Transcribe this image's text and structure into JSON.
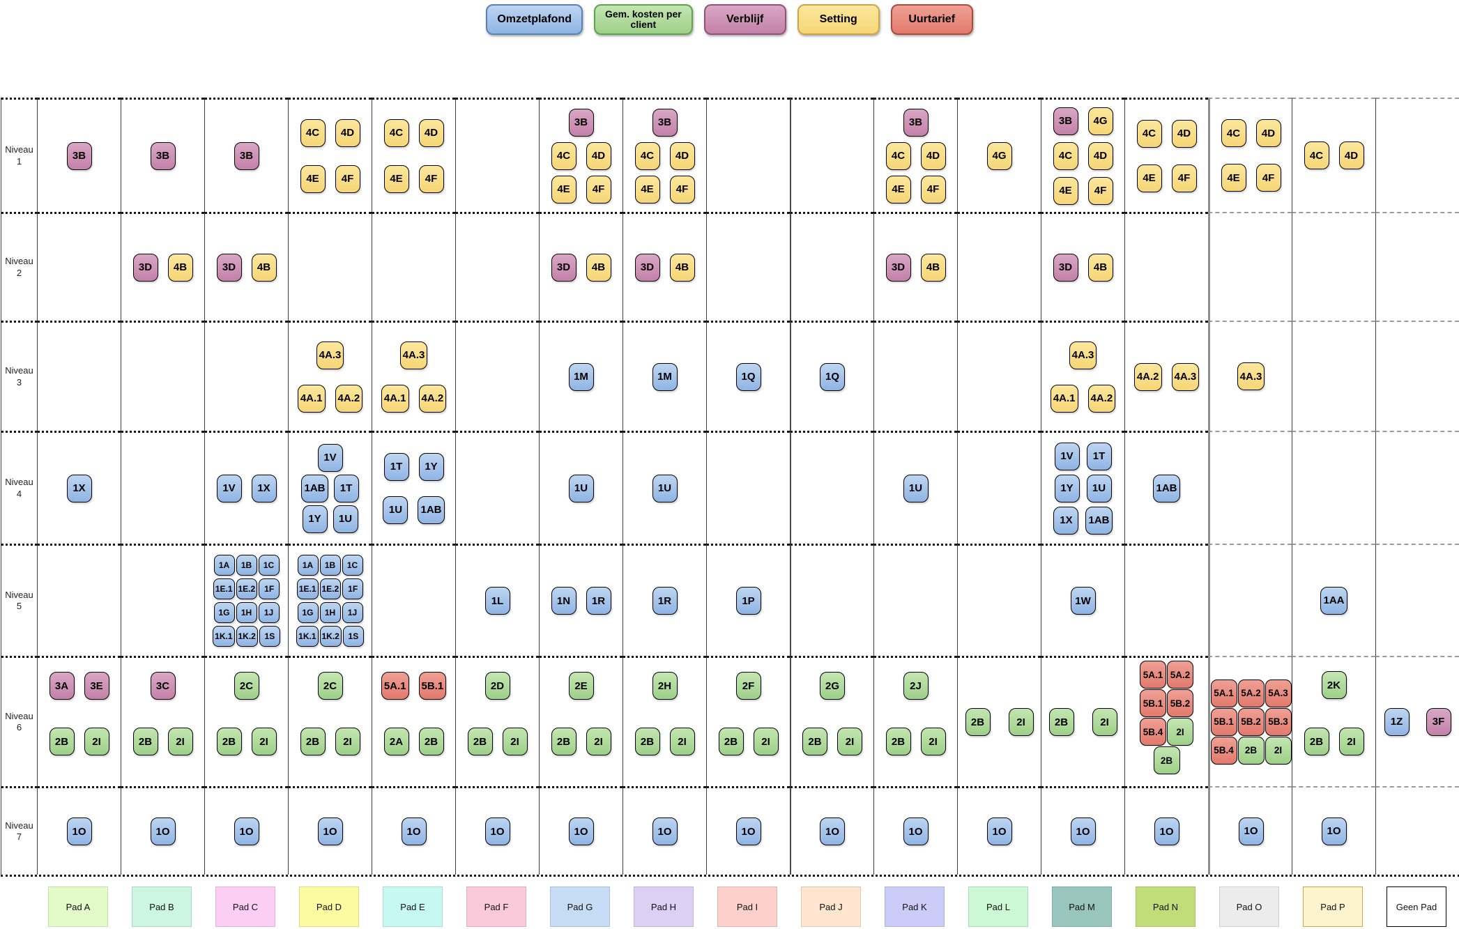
{
  "legend": {
    "items": [
      {
        "label": "Omzetplafond",
        "color": "blue"
      },
      {
        "label": "Gem. kosten per\nclient",
        "color": "green"
      },
      {
        "label": "Verblijf",
        "color": "pink"
      },
      {
        "label": "Setting",
        "color": "yellow"
      },
      {
        "label": "Uurtarief",
        "color": "red"
      }
    ]
  },
  "palette": {
    "blue": {
      "light": "#bdd5f1",
      "main": "#8fb4e4",
      "border": "#5b82b4"
    },
    "green": {
      "light": "#c4e6b2",
      "main": "#9ed089",
      "border": "#61a050"
    },
    "pink": {
      "light": "#d9a7c5",
      "main": "#c481a9",
      "border": "#8f537a"
    },
    "yellow": {
      "light": "#fbe79c",
      "main": "#f6d677",
      "border": "#c9a647"
    },
    "red": {
      "light": "#efa095",
      "main": "#e27a6c",
      "border": "#ad4a40"
    }
  },
  "grid": {
    "row_labels": [
      "Niveau 1",
      "Niveau 2",
      "Niveau 3",
      "Niveau 4",
      "Niveau 5",
      "Niveau 6",
      "Niveau 7"
    ],
    "columns": [
      {
        "key": "A",
        "label": "Pad A",
        "bg": "#e3fbc9"
      },
      {
        "key": "B",
        "label": "Pad B",
        "bg": "#cbf7e0"
      },
      {
        "key": "C",
        "label": "Pad C",
        "bg": "#fbcff5"
      },
      {
        "key": "D",
        "label": "Pad D",
        "bg": "#fdfb9f"
      },
      {
        "key": "E",
        "label": "Pad E",
        "bg": "#c7f9f3"
      },
      {
        "key": "F",
        "label": "Pad F",
        "bg": "#fbcada"
      },
      {
        "key": "G",
        "label": "Pad G",
        "bg": "#c6dcf4"
      },
      {
        "key": "H",
        "label": "Pad H",
        "bg": "#decff7"
      },
      {
        "key": "I",
        "label": "Pad I",
        "bg": "#fdd0cc"
      },
      {
        "key": "J",
        "label": "Pad J",
        "bg": "#fde5cf"
      },
      {
        "key": "K",
        "label": "Pad K",
        "bg": "#ccccf9"
      },
      {
        "key": "L",
        "label": "Pad L",
        "bg": "#ccf9d5"
      },
      {
        "key": "M",
        "label": "Pad M",
        "bg": "#98c5bc"
      },
      {
        "key": "N",
        "label": "Pad N",
        "bg": "#c1dd79"
      },
      {
        "key": "O",
        "label": "Pad O",
        "bg": "#ececec"
      },
      {
        "key": "P",
        "label": "Pad P",
        "bg": "#fdf3cc",
        "border": "#cfa94d"
      },
      {
        "key": "geen",
        "label": "Geen Pad",
        "bg": "#ffffff",
        "border": "#000000"
      }
    ],
    "cells": [
      {
        "niveau": 1,
        "pad": "A",
        "mode": "center",
        "rows": [
          [
            "3B:pink"
          ]
        ]
      },
      {
        "niveau": 1,
        "pad": "B",
        "mode": "center",
        "rows": [
          [
            "3B:pink"
          ]
        ]
      },
      {
        "niveau": 1,
        "pad": "C",
        "mode": "center",
        "rows": [
          [
            "3B:pink"
          ]
        ]
      },
      {
        "niveau": 1,
        "pad": "D",
        "mode": "center",
        "vgap": 26,
        "rows": [
          [
            "4C:yellow",
            "4D:yellow"
          ],
          [
            "4E:yellow",
            "4F:yellow"
          ]
        ]
      },
      {
        "niveau": 1,
        "pad": "E",
        "mode": "center",
        "vgap": 26,
        "rows": [
          [
            "4C:yellow",
            "4D:yellow"
          ],
          [
            "4E:yellow",
            "4F:yellow"
          ]
        ]
      },
      {
        "niveau": 1,
        "pad": "G",
        "mode": "center",
        "vgap": 8,
        "rows": [
          [
            "3B:pink"
          ],
          [
            "4C:yellow",
            "4D:yellow"
          ],
          [
            "4E:yellow",
            "4F:yellow"
          ]
        ]
      },
      {
        "niveau": 1,
        "pad": "H",
        "mode": "center",
        "vgap": 8,
        "rows": [
          [
            "3B:pink"
          ],
          [
            "4C:yellow",
            "4D:yellow"
          ],
          [
            "4E:yellow",
            "4F:yellow"
          ]
        ]
      },
      {
        "niveau": 1,
        "pad": "K",
        "mode": "center",
        "vgap": 8,
        "rows": [
          [
            "3B:pink"
          ],
          [
            "4C:yellow",
            "4D:yellow"
          ],
          [
            "4E:yellow",
            "4F:yellow"
          ]
        ]
      },
      {
        "niveau": 1,
        "pad": "L",
        "mode": "center",
        "rows": [
          [
            "4G:yellow"
          ]
        ]
      },
      {
        "niveau": 1,
        "pad": "M",
        "mode": "center",
        "vgap": 10,
        "rows": [
          [
            "3B:pink",
            "4G:yellow"
          ],
          [
            "4C:yellow",
            "4D:yellow"
          ],
          [
            "4E:yellow",
            "4F:yellow"
          ]
        ]
      },
      {
        "niveau": 1,
        "pad": "N",
        "mode": "center",
        "vgap": 24,
        "rows": [
          [
            "4C:yellow",
            "4D:yellow"
          ],
          [
            "4E:yellow",
            "4F:yellow"
          ]
        ]
      },
      {
        "niveau": 1,
        "pad": "O",
        "mode": "center",
        "vgap": 24,
        "rows": [
          [
            "4C:yellow",
            "4D:yellow"
          ],
          [
            "4E:yellow",
            "4F:yellow"
          ]
        ]
      },
      {
        "niveau": 1,
        "pad": "P",
        "mode": "center",
        "rows": [
          [
            "4C:yellow",
            "4D:yellow"
          ]
        ]
      },
      {
        "niveau": 2,
        "pad": "B",
        "mode": "center",
        "rows": [
          [
            "3D:pink",
            "4B:yellow"
          ]
        ]
      },
      {
        "niveau": 2,
        "pad": "C",
        "mode": "center",
        "rows": [
          [
            "3D:pink",
            "4B:yellow"
          ]
        ]
      },
      {
        "niveau": 2,
        "pad": "G",
        "mode": "center",
        "rows": [
          [
            "3D:pink",
            "4B:yellow"
          ]
        ]
      },
      {
        "niveau": 2,
        "pad": "H",
        "mode": "center",
        "rows": [
          [
            "3D:pink",
            "4B:yellow"
          ]
        ]
      },
      {
        "niveau": 2,
        "pad": "K",
        "mode": "center",
        "rows": [
          [
            "3D:pink",
            "4B:yellow"
          ]
        ]
      },
      {
        "niveau": 2,
        "pad": "M",
        "mode": "center",
        "rows": [
          [
            "3D:pink",
            "4B:yellow"
          ]
        ]
      },
      {
        "niveau": 3,
        "pad": "D",
        "mode": "center",
        "vgap": 22,
        "rows": [
          [
            "4A.3:yellow"
          ],
          [
            "4A.1:yellow",
            "4A.2:yellow"
          ]
        ]
      },
      {
        "niveau": 3,
        "pad": "E",
        "mode": "center",
        "vgap": 22,
        "rows": [
          [
            "4A.3:yellow"
          ],
          [
            "4A.1:yellow",
            "4A.2:yellow"
          ]
        ]
      },
      {
        "niveau": 3,
        "pad": "G",
        "mode": "center",
        "rows": [
          [
            "1M:blue"
          ]
        ]
      },
      {
        "niveau": 3,
        "pad": "H",
        "mode": "center",
        "rows": [
          [
            "1M:blue"
          ]
        ]
      },
      {
        "niveau": 3,
        "pad": "I",
        "mode": "center",
        "rows": [
          [
            "1Q:blue"
          ]
        ]
      },
      {
        "niveau": 3,
        "pad": "J",
        "mode": "center",
        "rows": [
          [
            "1Q:blue"
          ]
        ]
      },
      {
        "niveau": 3,
        "pad": "M",
        "mode": "center",
        "vgap": 22,
        "rows": [
          [
            "4A.3:yellow"
          ],
          [
            "4A.1:yellow",
            "4A.2:yellow"
          ]
        ]
      },
      {
        "niveau": 3,
        "pad": "N",
        "mode": "center",
        "rows": [
          [
            "4A.2:yellow",
            "4A.3:yellow"
          ]
        ]
      },
      {
        "niveau": 3,
        "pad": "O",
        "mode": "center",
        "rows": [
          [
            "4A.3:yellow"
          ]
        ]
      },
      {
        "niveau": 4,
        "pad": "A",
        "mode": "center",
        "rows": [
          [
            "1X:blue"
          ]
        ]
      },
      {
        "niveau": 4,
        "pad": "C",
        "mode": "center",
        "rows": [
          [
            "1V:blue",
            "1X:blue"
          ]
        ]
      },
      {
        "niveau": 4,
        "pad": "D",
        "mode": "center",
        "vgap": 4,
        "hgap": 8,
        "rows": [
          [
            "1V:blue"
          ],
          [
            "1AB:blue",
            "1T:blue"
          ],
          [
            "1Y:blue",
            "1U:blue"
          ]
        ]
      },
      {
        "niveau": 4,
        "pad": "E",
        "mode": "center",
        "vgap": 22,
        "rows": [
          [
            "1T:blue",
            "1Y:blue"
          ],
          [
            "1U:blue",
            "1AB:blue"
          ]
        ]
      },
      {
        "niveau": 4,
        "pad": "G",
        "mode": "center",
        "rows": [
          [
            "1U:blue"
          ]
        ]
      },
      {
        "niveau": 4,
        "pad": "H",
        "mode": "center",
        "rows": [
          [
            "1U:blue"
          ]
        ]
      },
      {
        "niveau": 4,
        "pad": "K",
        "mode": "center",
        "rows": [
          [
            "1U:blue"
          ]
        ]
      },
      {
        "niveau": 4,
        "pad": "M",
        "mode": "center",
        "vgap": 6,
        "hgap": 10,
        "rows": [
          [
            "1V:blue",
            "1T:blue"
          ],
          [
            "1Y:blue",
            "1U:blue"
          ],
          [
            "1X:blue",
            "1AB:blue"
          ]
        ]
      },
      {
        "niveau": 4,
        "pad": "N",
        "mode": "center",
        "rows": [
          [
            "1AB:blue"
          ]
        ]
      },
      {
        "niveau": 5,
        "pad": "C",
        "mode": "tight",
        "rows": [
          [
            "1A:blue",
            "1B:blue",
            "1C:blue"
          ],
          [
            "1E.1:blue",
            "1E.2:blue",
            "1F:blue"
          ],
          [
            "1G:blue",
            "1H:blue",
            "1J:blue"
          ],
          [
            "1K.1:blue",
            "1K.2:blue",
            "1S:blue"
          ]
        ]
      },
      {
        "niveau": 5,
        "pad": "D",
        "mode": "tight",
        "rows": [
          [
            "1A:blue",
            "1B:blue",
            "1C:blue"
          ],
          [
            "1E.1:blue",
            "1E.2:blue",
            "1F:blue"
          ],
          [
            "1G:blue",
            "1H:blue",
            "1J:blue"
          ],
          [
            "1K.1:blue",
            "1K.2:blue",
            "1S:blue"
          ]
        ]
      },
      {
        "niveau": 5,
        "pad": "F",
        "mode": "center",
        "rows": [
          [
            "1L:blue"
          ]
        ]
      },
      {
        "niveau": 5,
        "pad": "G",
        "mode": "center",
        "rows": [
          [
            "1N:blue",
            "1R:blue"
          ]
        ]
      },
      {
        "niveau": 5,
        "pad": "H",
        "mode": "center",
        "rows": [
          [
            "1R:blue"
          ]
        ]
      },
      {
        "niveau": 5,
        "pad": "I",
        "mode": "center",
        "rows": [
          [
            "1P:blue"
          ]
        ]
      },
      {
        "niveau": 5,
        "pad": "M",
        "mode": "center",
        "rows": [
          [
            "1W:blue"
          ]
        ]
      },
      {
        "niveau": 5,
        "pad": "P",
        "mode": "center",
        "rows": [
          [
            "1AA:blue"
          ]
        ]
      },
      {
        "niveau": 6,
        "pad": "A",
        "mode": "spread",
        "rows": [
          [
            "3A:pink",
            "3E:pink"
          ],
          [
            "2B:green",
            "2I:green"
          ]
        ]
      },
      {
        "niveau": 6,
        "pad": "B",
        "mode": "spread",
        "rows": [
          [
            "3C:pink"
          ],
          [
            "2B:green",
            "2I:green"
          ]
        ]
      },
      {
        "niveau": 6,
        "pad": "C",
        "mode": "spread",
        "rows": [
          [
            "2C:green"
          ],
          [
            "2B:green",
            "2I:green"
          ]
        ]
      },
      {
        "niveau": 6,
        "pad": "D",
        "mode": "spread",
        "rows": [
          [
            "2C:green"
          ],
          [
            "2B:green",
            "2I:green"
          ]
        ]
      },
      {
        "niveau": 6,
        "pad": "E",
        "mode": "spread",
        "rows": [
          [
            "5A.1:red",
            "5B.1:red"
          ],
          [
            "2A:green",
            "2B:green"
          ]
        ]
      },
      {
        "niveau": 6,
        "pad": "F",
        "mode": "spread",
        "rows": [
          [
            "2D:green"
          ],
          [
            "2B:green",
            "2I:green"
          ]
        ]
      },
      {
        "niveau": 6,
        "pad": "G",
        "mode": "spread",
        "rows": [
          [
            "2E:green"
          ],
          [
            "2B:green",
            "2I:green"
          ]
        ]
      },
      {
        "niveau": 6,
        "pad": "H",
        "mode": "spread",
        "rows": [
          [
            "2H:green"
          ],
          [
            "2B:green",
            "2I:green"
          ]
        ]
      },
      {
        "niveau": 6,
        "pad": "I",
        "mode": "spread",
        "rows": [
          [
            "2F:green"
          ],
          [
            "2B:green",
            "2I:green"
          ]
        ]
      },
      {
        "niveau": 6,
        "pad": "J",
        "mode": "spread",
        "rows": [
          [
            "2G:green"
          ],
          [
            "2B:green",
            "2I:green"
          ]
        ]
      },
      {
        "niveau": 6,
        "pad": "K",
        "mode": "spread",
        "rows": [
          [
            "2J:green"
          ],
          [
            "2B:green",
            "2I:green"
          ]
        ]
      },
      {
        "niveau": 6,
        "pad": "L",
        "mode": "center",
        "hgap": 26,
        "rows": [
          [
            "2B:green",
            "2I:green"
          ]
        ]
      },
      {
        "niveau": 6,
        "pad": "M",
        "mode": "center",
        "hgap": 26,
        "rows": [
          [
            "2B:green",
            "2I:green"
          ]
        ]
      },
      {
        "niveau": 6,
        "pad": "N",
        "mode": "cluster",
        "rows": [
          [
            "5A.1:red",
            "5A.2:red"
          ],
          [
            "5B.1:red",
            "5B.2:red"
          ],
          [
            "5B.4:red",
            "2I:green"
          ],
          [
            "2B:green"
          ]
        ]
      },
      {
        "niveau": 6,
        "pad": "O",
        "mode": "cluster",
        "valign": "center",
        "rows": [
          [
            "5A.1:red",
            "5A.2:red",
            "5A.3:red"
          ],
          [
            "5B.1:red",
            "5B.2:red",
            "5B.3:red"
          ],
          [
            "5B.4:red",
            "2B:green",
            "2I:green"
          ]
        ]
      },
      {
        "niveau": 6,
        "pad": "P",
        "mode": "spread",
        "rows": [
          [
            "2K:green"
          ],
          [
            "2B:green",
            "2I:green"
          ]
        ]
      },
      {
        "niveau": 6,
        "pad": "geen",
        "mode": "center",
        "hgap": 24,
        "rows": [
          [
            "1Z:blue",
            "3F:pink"
          ]
        ]
      },
      {
        "niveau": 7,
        "pad": "A",
        "mode": "center",
        "rows": [
          [
            "1O:blue"
          ]
        ]
      },
      {
        "niveau": 7,
        "pad": "B",
        "mode": "center",
        "rows": [
          [
            "1O:blue"
          ]
        ]
      },
      {
        "niveau": 7,
        "pad": "C",
        "mode": "center",
        "rows": [
          [
            "1O:blue"
          ]
        ]
      },
      {
        "niveau": 7,
        "pad": "D",
        "mode": "center",
        "rows": [
          [
            "1O:blue"
          ]
        ]
      },
      {
        "niveau": 7,
        "pad": "E",
        "mode": "center",
        "rows": [
          [
            "1O:blue"
          ]
        ]
      },
      {
        "niveau": 7,
        "pad": "F",
        "mode": "center",
        "rows": [
          [
            "1O:blue"
          ]
        ]
      },
      {
        "niveau": 7,
        "pad": "G",
        "mode": "center",
        "rows": [
          [
            "1O:blue"
          ]
        ]
      },
      {
        "niveau": 7,
        "pad": "H",
        "mode": "center",
        "rows": [
          [
            "1O:blue"
          ]
        ]
      },
      {
        "niveau": 7,
        "pad": "I",
        "mode": "center",
        "rows": [
          [
            "1O:blue"
          ]
        ]
      },
      {
        "niveau": 7,
        "pad": "J",
        "mode": "center",
        "rows": [
          [
            "1O:blue"
          ]
        ]
      },
      {
        "niveau": 7,
        "pad": "K",
        "mode": "center",
        "rows": [
          [
            "1O:blue"
          ]
        ]
      },
      {
        "niveau": 7,
        "pad": "L",
        "mode": "center",
        "rows": [
          [
            "1O:blue"
          ]
        ]
      },
      {
        "niveau": 7,
        "pad": "M",
        "mode": "center",
        "rows": [
          [
            "1O:blue"
          ]
        ]
      },
      {
        "niveau": 7,
        "pad": "N",
        "mode": "center",
        "rows": [
          [
            "1O:blue"
          ]
        ]
      },
      {
        "niveau": 7,
        "pad": "O",
        "mode": "center",
        "rows": [
          [
            "1O:blue"
          ]
        ]
      },
      {
        "niveau": 7,
        "pad": "P",
        "mode": "center",
        "rows": [
          [
            "1O:blue"
          ]
        ]
      }
    ]
  }
}
